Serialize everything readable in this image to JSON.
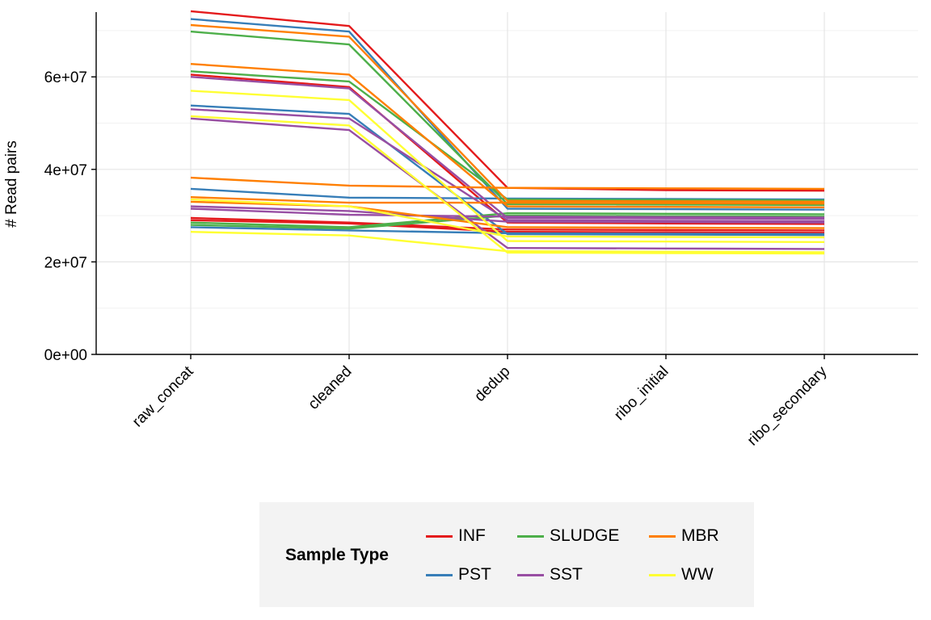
{
  "chart_data": {
    "type": "line",
    "title": "",
    "xlabel": "",
    "ylabel": "# Read pairs",
    "categories": [
      "raw_concat",
      "cleaned",
      "dedup",
      "ribo_initial",
      "ribo_secondary"
    ],
    "ylim": [
      0,
      74000000
    ],
    "yticks": [
      0,
      20000000,
      40000000,
      60000000
    ],
    "ytick_labels": [
      "0e+00",
      "2e+07",
      "4e+07",
      "6e+07"
    ],
    "grid": true,
    "legend_title": "Sample Type",
    "legend_position": "bottom",
    "groups": [
      {
        "name": "INF",
        "color": "#e41a1c"
      },
      {
        "name": "PST",
        "color": "#377eb8"
      },
      {
        "name": "SLUDGE",
        "color": "#4daf4a"
      },
      {
        "name": "SST",
        "color": "#984ea3"
      },
      {
        "name": "MBR",
        "color": "#ff7f00"
      },
      {
        "name": "WW",
        "color": "#ffff33"
      }
    ],
    "series": [
      {
        "group": "INF",
        "values": [
          74200000,
          71000000,
          36000000,
          35500000,
          35400000
        ]
      },
      {
        "group": "INF",
        "values": [
          60500000,
          57800000,
          28500000,
          28300000,
          28200000
        ]
      },
      {
        "group": "INF",
        "values": [
          29500000,
          28500000,
          27000000,
          26900000,
          26800000
        ]
      },
      {
        "group": "INF",
        "values": [
          29000000,
          28300000,
          26500000,
          26400000,
          26300000
        ]
      },
      {
        "group": "PST",
        "values": [
          72500000,
          69800000,
          31500000,
          31400000,
          31300000
        ]
      },
      {
        "group": "PST",
        "values": [
          53800000,
          52000000,
          26000000,
          25900000,
          25800000
        ]
      },
      {
        "group": "PST",
        "values": [
          35800000,
          33900000,
          33700000,
          33600000,
          33500000
        ]
      },
      {
        "group": "PST",
        "values": [
          27500000,
          26800000,
          26200000,
          26100000,
          26000000
        ]
      },
      {
        "group": "SLUDGE",
        "values": [
          69800000,
          67000000,
          32500000,
          32400000,
          32300000
        ]
      },
      {
        "group": "SLUDGE",
        "values": [
          61200000,
          59000000,
          33500000,
          33400000,
          33300000
        ]
      },
      {
        "group": "SLUDGE",
        "values": [
          28500000,
          27500000,
          30500000,
          30400000,
          30300000
        ]
      },
      {
        "group": "SLUDGE",
        "values": [
          28000000,
          27200000,
          30000000,
          29900000,
          29800000
        ]
      },
      {
        "group": "SST",
        "values": [
          60000000,
          57500000,
          29500000,
          29400000,
          29300000
        ]
      },
      {
        "group": "SST",
        "values": [
          53000000,
          51000000,
          29000000,
          28900000,
          28800000
        ]
      },
      {
        "group": "SST",
        "values": [
          51000000,
          48500000,
          23000000,
          22900000,
          22800000
        ]
      },
      {
        "group": "SST",
        "values": [
          32000000,
          31000000,
          28700000,
          28600000,
          28500000
        ]
      },
      {
        "group": "SST",
        "values": [
          31500000,
          30200000,
          29800000,
          29700000,
          29600000
        ]
      },
      {
        "group": "MBR",
        "values": [
          71200000,
          68700000,
          33200000,
          33100000,
          33000000
        ]
      },
      {
        "group": "MBR",
        "values": [
          62800000,
          60500000,
          32000000,
          31900000,
          31800000
        ]
      },
      {
        "group": "MBR",
        "values": [
          38200000,
          36500000,
          36000000,
          35900000,
          35800000
        ]
      },
      {
        "group": "MBR",
        "values": [
          34000000,
          32800000,
          32800000,
          32700000,
          32600000
        ]
      },
      {
        "group": "MBR",
        "values": [
          33000000,
          32000000,
          27500000,
          27400000,
          27300000
        ]
      },
      {
        "group": "WW",
        "values": [
          57000000,
          55000000,
          24500000,
          24400000,
          24300000
        ]
      },
      {
        "group": "WW",
        "values": [
          51500000,
          49500000,
          22000000,
          21900000,
          21800000
        ]
      },
      {
        "group": "WW",
        "values": [
          33500000,
          32000000,
          25500000,
          25400000,
          25300000
        ]
      },
      {
        "group": "WW",
        "values": [
          26500000,
          25700000,
          22300000,
          22200000,
          22100000
        ]
      }
    ]
  }
}
